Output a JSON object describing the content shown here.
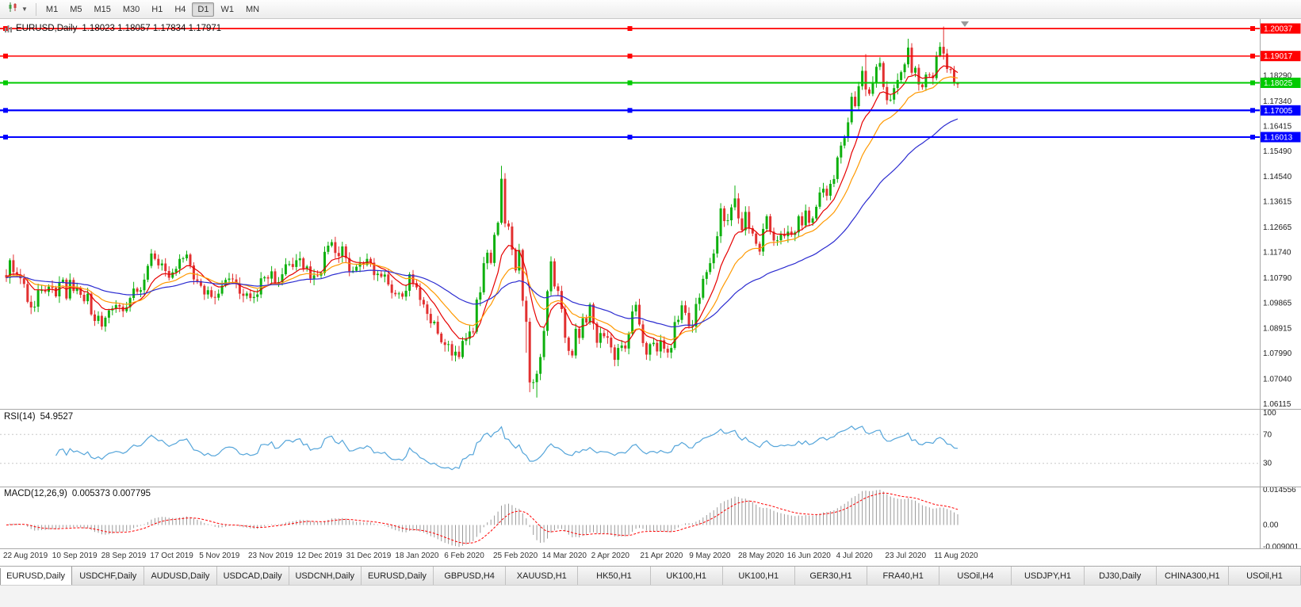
{
  "toolbar": {
    "timeframes": [
      "M1",
      "M5",
      "M15",
      "M30",
      "H1",
      "H4",
      "D1",
      "W1",
      "MN"
    ],
    "active": "D1",
    "chart_type_icon": "candlestick-chart-dropdown"
  },
  "chart": {
    "title": "EURUSD,Daily",
    "ohlc_text": "1.18023 1.18057 1.17834 1.17971"
  },
  "rsi_label": {
    "title": "RSI(14)",
    "value": "54.9527"
  },
  "macd_label": {
    "title": "MACD(12,26,9)",
    "values": "0.005373 0.007795"
  },
  "tabs": {
    "active_index": 0,
    "labels": [
      "EURUSD,Daily",
      "USDCHF,Daily",
      "AUDUSD,Daily",
      "USDCAD,Daily",
      "USDCNH,Daily",
      "EURUSD,Daily",
      "GBPUSD,H4",
      "XAUUSD,H1",
      "HK50,H1",
      "UK100,H1",
      "UK100,H1",
      "GER30,H1",
      "FRA40,H1",
      "USOil,H4",
      "USDJPY,H1",
      "DJ30,Daily",
      "CHINA300,H1",
      "USOil,H1"
    ]
  },
  "chart_data": {
    "type": "candlestick",
    "symbol": "EURUSD",
    "timeframe": "Daily",
    "panes": [
      "price",
      "rsi",
      "macd"
    ],
    "grid": false,
    "last_ohlc": {
      "open": 1.18023,
      "high": 1.18057,
      "low": 1.17834,
      "close": 1.17971
    },
    "price_domain": [
      1.0594,
      1.2039
    ],
    "y_ticks": [
      "1.18290",
      "1.17340",
      "1.16415",
      "1.15490",
      "1.14540",
      "1.13615",
      "1.12665",
      "1.11740",
      "1.10790",
      "1.09865",
      "1.08915",
      "1.07990",
      "1.07040",
      "1.06115"
    ],
    "x_ticks": [
      "22 Aug 2019",
      "10 Sep 2019",
      "28 Sep 2019",
      "17 Oct 2019",
      "5 Nov 2019",
      "23 Nov 2019",
      "12 Dec 2019",
      "31 Dec 2019",
      "18 Jan 2020",
      "6 Feb 2020",
      "25 Feb 2020",
      "14 Mar 2020",
      "2 Apr 2020",
      "21 Apr 2020",
      "9 May 2020",
      "28 May 2020",
      "16 Jun 2020",
      "4 Jul 2020",
      "23 Jul 2020",
      "11 Aug 2020"
    ],
    "first_open": 1.109,
    "closes": [
      1.108,
      1.1145,
      1.1101,
      1.1092,
      1.1078,
      1.1057,
      1.0991,
      1.097,
      1.0973,
      1.1034,
      1.1034,
      1.1028,
      1.1047,
      1.1043,
      1.1011,
      1.1064,
      1.1073,
      1.1003,
      1.1072,
      1.1031,
      1.1042,
      1.1017,
      1.0993,
      1.1021,
      1.0944,
      1.092,
      1.0939,
      1.0899,
      1.0932,
      1.0959,
      1.0966,
      1.0979,
      1.0973,
      1.0956,
      1.0971,
      1.1005,
      1.104,
      1.1028,
      1.1034,
      1.1073,
      1.1124,
      1.117,
      1.115,
      1.1126,
      1.1133,
      1.1105,
      1.108,
      1.11,
      1.1113,
      1.115,
      1.1152,
      1.1166,
      1.1126,
      1.1074,
      1.1068,
      1.105,
      1.1018,
      1.1034,
      1.1009,
      1.1006,
      1.1021,
      1.1051,
      1.1072,
      1.1077,
      1.1074,
      1.1058,
      1.1021,
      1.1013,
      1.1022,
      1.1005,
      1.1009,
      1.1018,
      1.1078,
      1.1082,
      1.1077,
      1.1104,
      1.106,
      1.1064,
      1.1093,
      1.113,
      1.1131,
      1.112,
      1.1145,
      1.1152,
      1.1114,
      1.1122,
      1.1077,
      1.1089,
      1.1088,
      1.1098,
      1.1176,
      1.1199,
      1.1212,
      1.1172,
      1.116,
      1.1196,
      1.1153,
      1.1104,
      1.1106,
      1.1121,
      1.1134,
      1.1128,
      1.115,
      1.1136,
      1.109,
      1.1095,
      1.1084,
      1.1092,
      1.1055,
      1.1024,
      1.1019,
      1.1022,
      1.101,
      1.1032,
      1.1093,
      1.106,
      1.1044,
      1.0998,
      1.0981,
      1.0946,
      1.0911,
      1.0917,
      1.0873,
      1.0841,
      1.0831,
      1.0834,
      1.0792,
      1.0806,
      1.0786,
      1.0846,
      1.0854,
      1.0881,
      1.088,
      1.0999,
      1.1026,
      1.1134,
      1.1173,
      1.1135,
      1.1239,
      1.1284,
      1.1447,
      1.1281,
      1.127,
      1.1184,
      1.1107,
      1.1183,
      1.0995,
      1.0917,
      1.0692,
      1.0693,
      1.0724,
      1.0786,
      1.0883,
      1.103,
      1.1141,
      1.1048,
      1.1031,
      1.0964,
      1.0858,
      1.0809,
      1.0792,
      1.0891,
      1.0857,
      1.093,
      1.0914,
      1.0981,
      1.091,
      1.0839,
      1.0875,
      1.0863,
      1.0858,
      1.0822,
      1.0776,
      1.082,
      1.0829,
      1.0818,
      1.0874,
      1.0955,
      1.098,
      1.0907,
      1.0838,
      1.0795,
      1.0834,
      1.0839,
      1.0807,
      1.0848,
      1.0817,
      1.0803,
      1.082,
      1.0916,
      1.0924,
      1.0978,
      1.095,
      1.09,
      1.09,
      1.0983,
      1.1006,
      1.1076,
      1.1101,
      1.1134,
      1.117,
      1.1234,
      1.1337,
      1.129,
      1.1293,
      1.1341,
      1.1374,
      1.13,
      1.1256,
      1.1324,
      1.1264,
      1.1244,
      1.1206,
      1.1177,
      1.1261,
      1.1308,
      1.1251,
      1.1218,
      1.1219,
      1.1243,
      1.1234,
      1.1251,
      1.1239,
      1.1248,
      1.1308,
      1.1274,
      1.1329,
      1.1284,
      1.13,
      1.1343,
      1.1396,
      1.141,
      1.1384,
      1.1428,
      1.1446,
      1.1526,
      1.157,
      1.1598,
      1.1656,
      1.1751,
      1.1716,
      1.179,
      1.1847,
      1.1778,
      1.1762,
      1.1803,
      1.1862,
      1.1876,
      1.1787,
      1.1738,
      1.174,
      1.1783,
      1.1813,
      1.1842,
      1.1871,
      1.1933,
      1.184,
      1.1858,
      1.1796,
      1.1786,
      1.1833,
      1.183,
      1.182,
      1.1903,
      1.1936,
      1.1911,
      1.1854,
      1.185,
      1.1802,
      1.1797
    ],
    "wick_overrides": {
      "128": {
        "l": 1.0778
      },
      "140": {
        "h": 1.1495
      },
      "147": {
        "l": 1.0802
      },
      "148": {
        "l": 1.0656
      },
      "150": {
        "l": 1.0636
      },
      "206": {
        "h": 1.1422
      },
      "243": {
        "h": 1.1909
      },
      "255": {
        "h": 1.1966
      },
      "265": {
        "h": 1.2011
      },
      "269": {
        "h": 1.18057,
        "l": 1.17834
      }
    },
    "moving_averages": [
      {
        "period": 10,
        "color": "#e60000"
      },
      {
        "period": 20,
        "color": "#ff9900"
      },
      {
        "period": 50,
        "color": "#2b2bd0"
      }
    ],
    "horizontal_lines": [
      {
        "price": 1.20037,
        "label": "1.20037",
        "color": "#ff0000",
        "width": 1.5
      },
      {
        "price": 1.19017,
        "label": "1.19017",
        "color": "#ff0000",
        "width": 1.5
      },
      {
        "price": 1.18025,
        "label": "1.18025",
        "color": "#00ca00",
        "width": 2
      },
      {
        "price": 1.17005,
        "label": "1.17005",
        "color": "#0000ff",
        "width": 2
      },
      {
        "price": 1.16013,
        "label": "1.16013",
        "color": "#0000ff",
        "width": 2
      }
    ],
    "indicators": {
      "rsi": {
        "period": 14,
        "current": 54.9527,
        "levels": [
          100,
          70,
          30
        ]
      },
      "macd": {
        "fast": 12,
        "slow": 26,
        "signal": 9,
        "current_macd": 0.005373,
        "current_signal": 0.007795,
        "axis_labels": [
          0.014556,
          0,
          -0.009001
        ]
      }
    },
    "colors": {
      "up": "#0eb00e",
      "down": "#e23030",
      "rsi": "#55a5da",
      "macd_hist": "#9a9a9a",
      "macd_signal": "#ff0000"
    }
  }
}
